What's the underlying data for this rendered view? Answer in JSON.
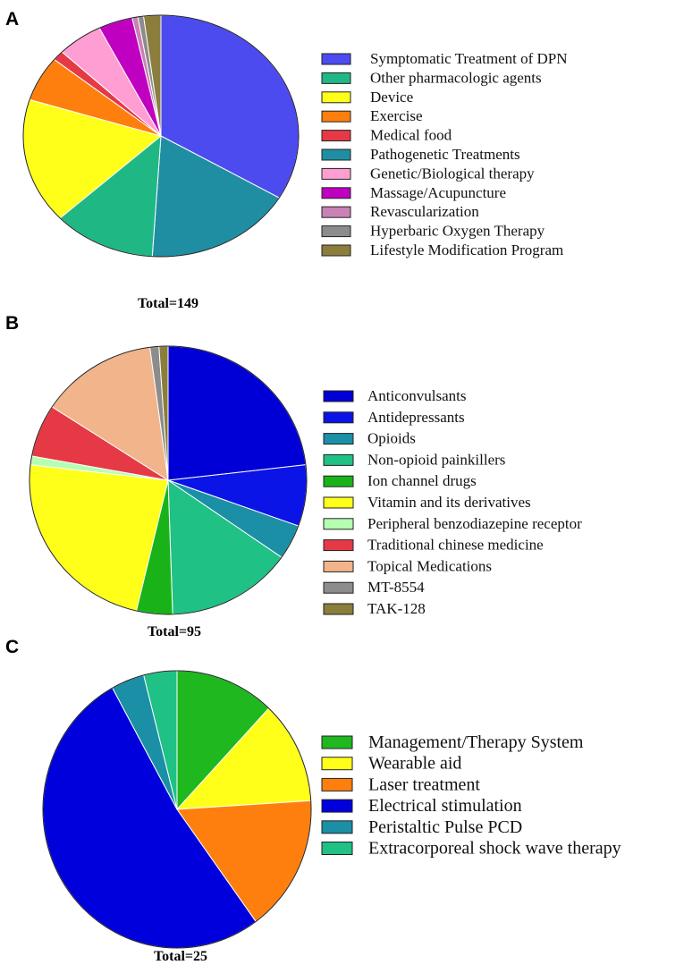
{
  "chart_data": [
    {
      "panel": "A",
      "type": "pie",
      "total_label": "Total=149",
      "slices": [
        {
          "label": "Symptomatic Treatment of DPN",
          "value": 50,
          "color": "#4b4bf0"
        },
        {
          "label": "Pathogenetic Treatments",
          "value": 26,
          "color": "#1f8ea3"
        },
        {
          "label": "Other pharmacologic agents",
          "value": 18,
          "color": "#1fb884"
        },
        {
          "label": "Device",
          "value": 25,
          "color": "#ffff1a"
        },
        {
          "label": "Exercise",
          "value": 9,
          "color": "#ff7f0e"
        },
        {
          "label": "Medical food",
          "value": 2,
          "color": "#e63946"
        },
        {
          "label": "Genetic/Biological therapy",
          "value": 8,
          "color": "#ff9ed2"
        },
        {
          "label": "Massage/Acupuncture",
          "value": 6,
          "color": "#c000c0"
        },
        {
          "label": "Revascularization",
          "value": 1,
          "color": "#c982b5"
        },
        {
          "label": "Hyperbaric Oxygen Therapy",
          "value": 1,
          "color": "#8c8c8c"
        },
        {
          "label": "Lifestyle Modification Program",
          "value": 3,
          "color": "#8b7d3c"
        }
      ],
      "legend": [
        {
          "label": "Symptomatic Treatment of DPN",
          "color": "#4b4bf0"
        },
        {
          "label": "Other pharmacologic agents",
          "color": "#1fb884"
        },
        {
          "label": "Device",
          "color": "#ffff1a"
        },
        {
          "label": "Exercise",
          "color": "#ff7f0e"
        },
        {
          "label": "Medical food",
          "color": "#e63946"
        },
        {
          "label": "Pathogenetic Treatments",
          "color": "#1f8ea3"
        },
        {
          "label": "Genetic/Biological therapy",
          "color": "#ff9ed2"
        },
        {
          "label": "Massage/Acupuncture",
          "color": "#c000c0"
        },
        {
          "label": "Revascularization",
          "color": "#c982b5"
        },
        {
          "label": "Hyperbaric Oxygen Therapy",
          "color": "#8c8c8c"
        },
        {
          "label": "Lifestyle Modification Program",
          "color": "#8b7d3c"
        }
      ]
    },
    {
      "panel": "B",
      "type": "pie",
      "total_label": "Total=95",
      "slices": [
        {
          "label": "Anticonvulsants",
          "value": 22,
          "color": "#0000d6"
        },
        {
          "label": "Antidepressants",
          "value": 7,
          "color": "#0a14e6"
        },
        {
          "label": "Opioids",
          "value": 4,
          "color": "#1a8fa6"
        },
        {
          "label": "Non-opioid painkillers",
          "value": 14,
          "color": "#1fc184"
        },
        {
          "label": "Ion channel drugs",
          "value": 4,
          "color": "#19b319"
        },
        {
          "label": "Vitamin and its derivatives",
          "value": 22,
          "color": "#ffff1a"
        },
        {
          "label": "Peripheral benzodiazepine receptor",
          "value": 1,
          "color": "#b5ffb0"
        },
        {
          "label": "Traditional chinese medicine",
          "value": 6,
          "color": "#e63946"
        },
        {
          "label": "Topical Medications",
          "value": 13,
          "color": "#f2b48a"
        },
        {
          "label": "MT-8554",
          "value": 1,
          "color": "#8c8c8c"
        },
        {
          "label": "TAK-128",
          "value": 1,
          "color": "#8b7d3c"
        }
      ]
    },
    {
      "panel": "C",
      "type": "pie",
      "total_label": "Total=25",
      "slices": [
        {
          "label": "Management/Therapy System",
          "value": 3,
          "color": "#1fb81f"
        },
        {
          "label": "Wearable aid",
          "value": 3,
          "color": "#ffff1a"
        },
        {
          "label": "Laser treatment",
          "value": 4,
          "color": "#ff7f0e"
        },
        {
          "label": "Electrical stimulation",
          "value": 13,
          "color": "#0000dd"
        },
        {
          "label": "Peristaltic Pulse PCD",
          "value": 1,
          "color": "#1a8fa6"
        },
        {
          "label": "Extracorporeal shock wave therapy",
          "value": 1,
          "color": "#1fc184"
        }
      ]
    }
  ]
}
